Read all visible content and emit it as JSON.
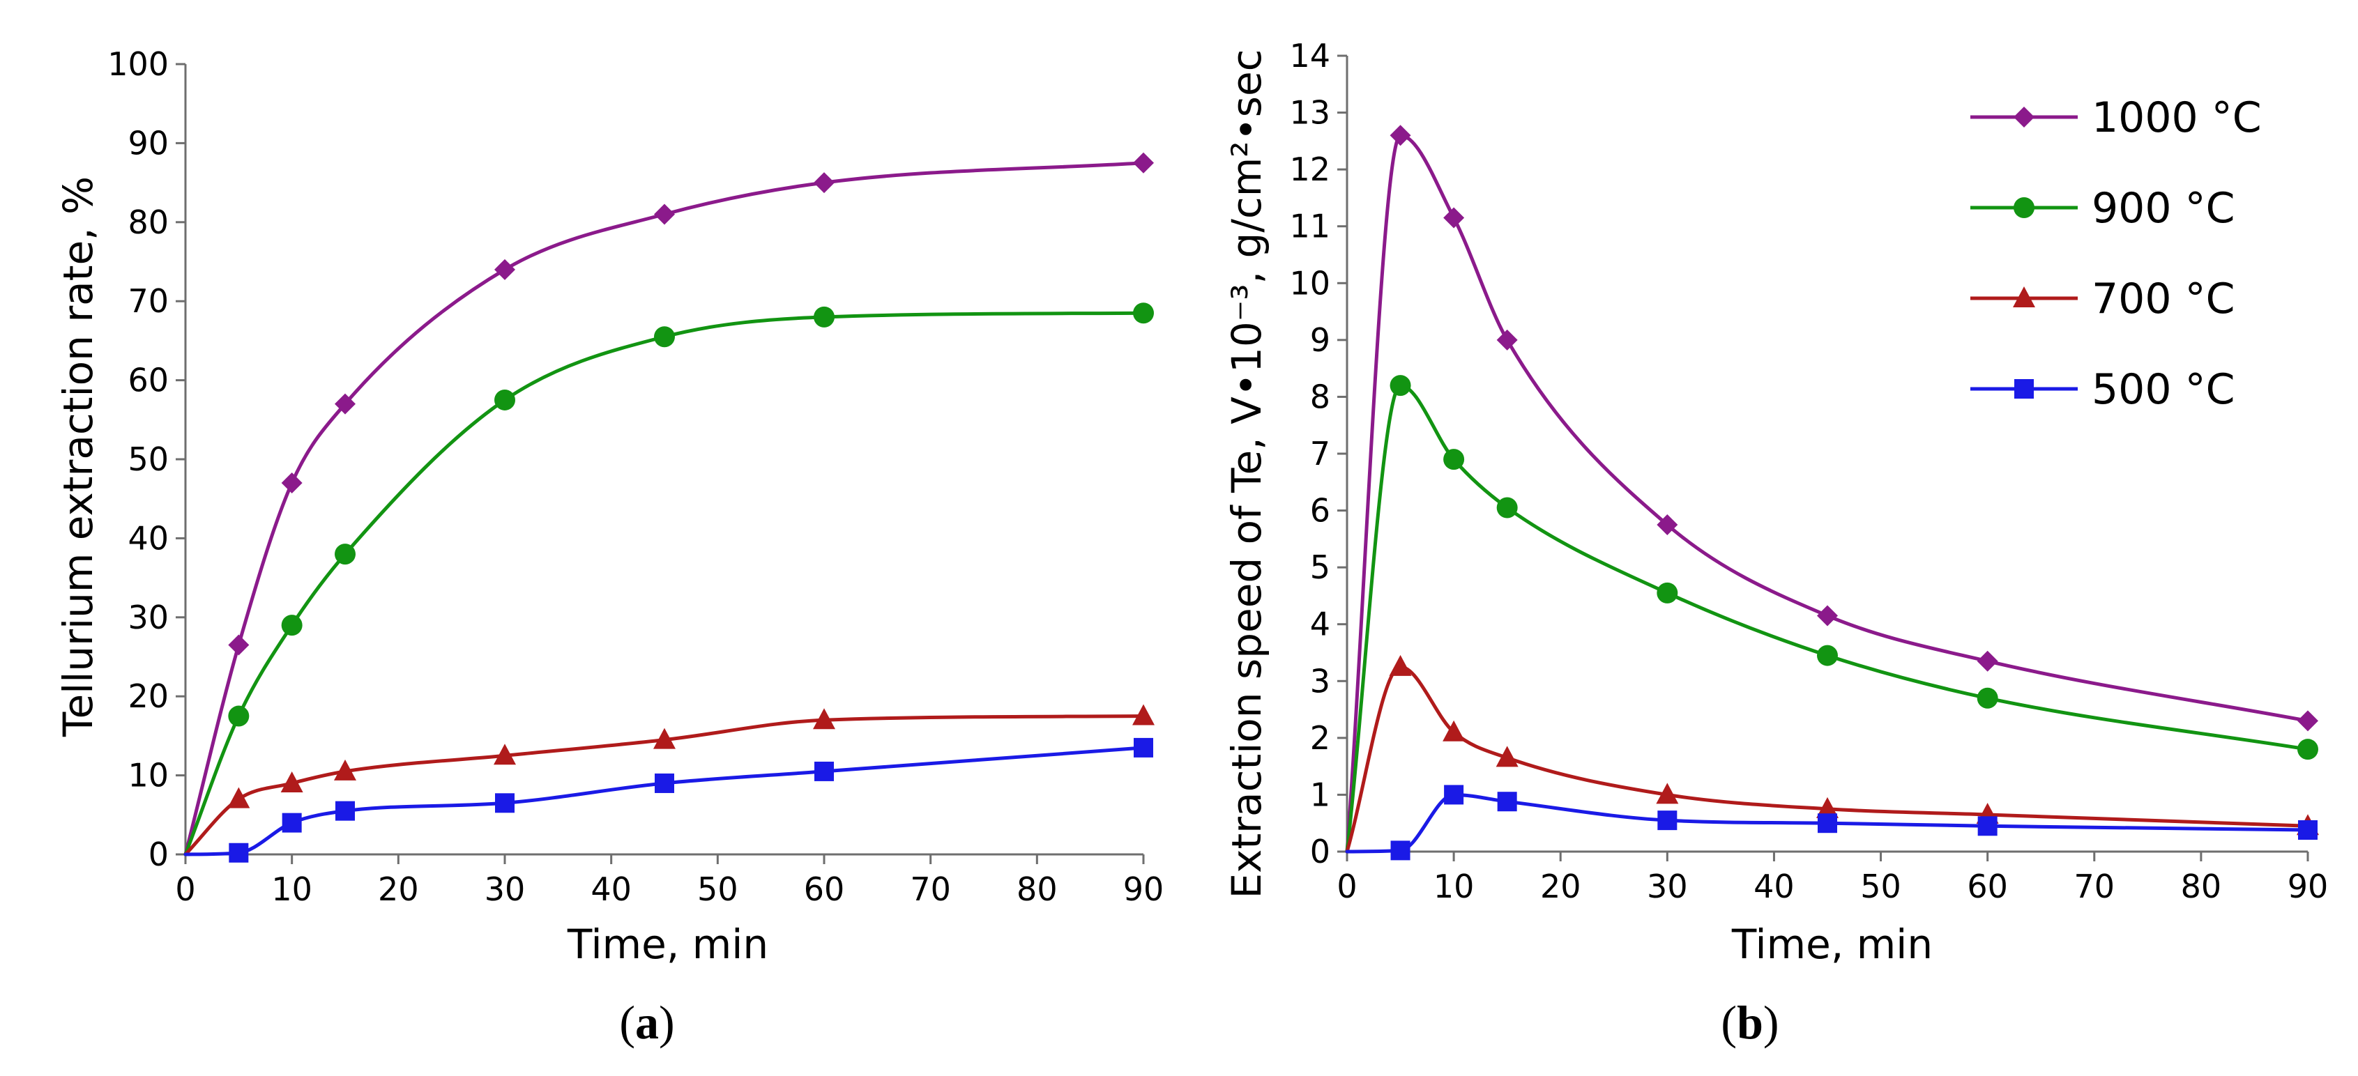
{
  "chart_data": [
    {
      "type": "line",
      "panel_label": "a",
      "xlabel": "Time, min",
      "ylabel": "Tellurium extraction rate, %",
      "xlim": [
        0,
        90
      ],
      "ylim": [
        0,
        100
      ],
      "xticks": [
        0,
        10,
        20,
        30,
        40,
        50,
        60,
        70,
        80,
        90
      ],
      "yticks": [
        0,
        10,
        20,
        30,
        40,
        50,
        60,
        70,
        80,
        90,
        100
      ],
      "grid": false,
      "series": [
        {
          "name": "1000 °C",
          "color": "#8B1A8B",
          "marker": "diamond",
          "x": [
            5,
            10,
            15,
            30,
            45,
            60,
            90
          ],
          "values": [
            26.5,
            47,
            57,
            74,
            81,
            85,
            87.5
          ]
        },
        {
          "name": "900 °C",
          "color": "#129412",
          "marker": "circle",
          "x": [
            5,
            10,
            15,
            30,
            45,
            60,
            90
          ],
          "values": [
            17.5,
            29,
            38,
            57.5,
            65.5,
            68,
            68.5
          ]
        },
        {
          "name": "700 °C",
          "color": "#B01B1B",
          "marker": "triangle",
          "x": [
            5,
            10,
            15,
            30,
            45,
            60,
            90
          ],
          "values": [
            7,
            9,
            10.5,
            12.5,
            14.5,
            17,
            17.5
          ]
        },
        {
          "name": "500 °C",
          "color": "#1A1AE6",
          "marker": "square",
          "x": [
            5,
            10,
            15,
            30,
            45,
            60,
            90
          ],
          "values": [
            0.2,
            4,
            5.5,
            6.5,
            9,
            10.5,
            13.5
          ]
        }
      ]
    },
    {
      "type": "line",
      "panel_label": "b",
      "xlabel": "Time, min",
      "ylabel": "Extraction speed of Te, V•10⁻³, g/cm²•sec",
      "xlim": [
        0,
        90
      ],
      "ylim": [
        0,
        14
      ],
      "xticks": [
        0,
        10,
        20,
        30,
        40,
        50,
        60,
        70,
        80,
        90
      ],
      "yticks": [
        0,
        1,
        2,
        3,
        4,
        5,
        6,
        7,
        8,
        9,
        10,
        11,
        12,
        13,
        14
      ],
      "grid": false,
      "legend_position": "top-right",
      "series": [
        {
          "name": "1000 °C",
          "color": "#8B1A8B",
          "marker": "diamond",
          "x": [
            5,
            10,
            15,
            30,
            45,
            60,
            90
          ],
          "values": [
            12.6,
            11.15,
            9,
            5.75,
            4.15,
            3.35,
            2.3
          ]
        },
        {
          "name": "900 °C",
          "color": "#129412",
          "marker": "circle",
          "x": [
            5,
            10,
            15,
            30,
            45,
            60,
            90
          ],
          "values": [
            8.2,
            6.9,
            6.05,
            4.55,
            3.45,
            2.7,
            1.8
          ]
        },
        {
          "name": "700 °C",
          "color": "#B01B1B",
          "marker": "triangle",
          "x": [
            5,
            10,
            15,
            30,
            45,
            60,
            90
          ],
          "values": [
            3.25,
            2.1,
            1.65,
            1.0,
            0.75,
            0.65,
            0.45
          ]
        },
        {
          "name": "500 °C",
          "color": "#1A1AE6",
          "marker": "square",
          "x": [
            5,
            10,
            15,
            30,
            45,
            60,
            90
          ],
          "values": [
            0.02,
            1.0,
            0.88,
            0.55,
            0.5,
            0.45,
            0.38
          ]
        }
      ]
    }
  ]
}
